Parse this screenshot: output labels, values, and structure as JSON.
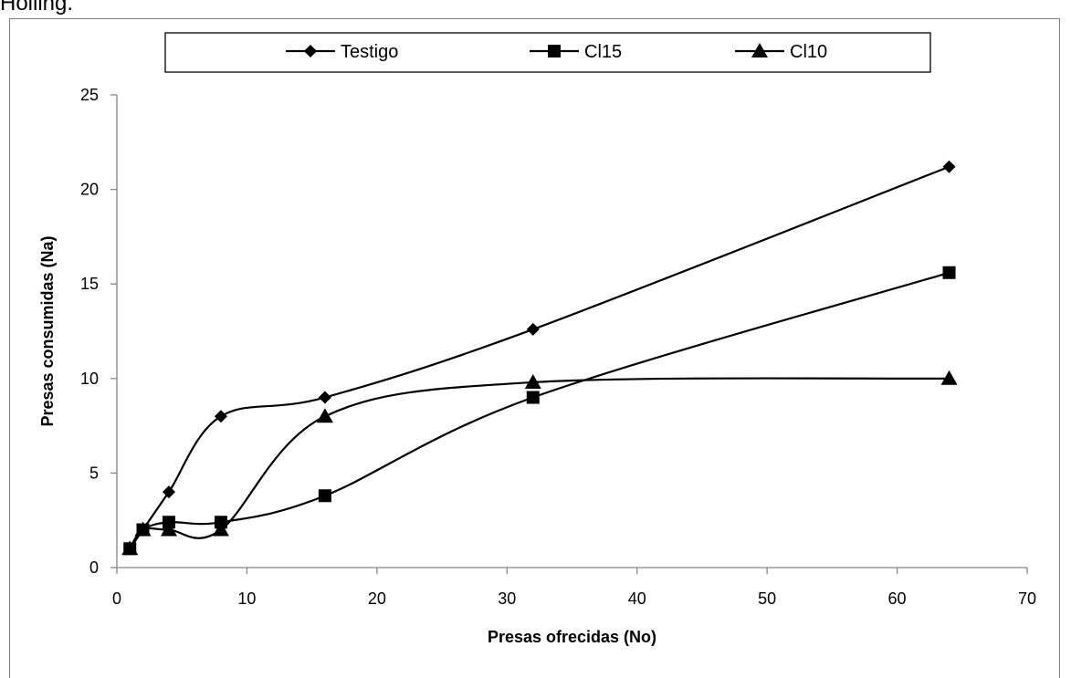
{
  "caption": "Holling.",
  "chart_data": {
    "type": "line",
    "xlabel": "Presas ofrecidas (No)",
    "ylabel": "Presas consumidas (Na)",
    "xlim": [
      0,
      70
    ],
    "ylim": [
      0,
      25
    ],
    "xticks": [
      "0",
      "10",
      "20",
      "30",
      "40",
      "50",
      "60",
      "70"
    ],
    "yticks": [
      "0",
      "5",
      "10",
      "15",
      "20",
      "25"
    ],
    "grid": false,
    "legend_position": "top",
    "smooth": true,
    "line_color": "#000000",
    "series": [
      {
        "name": "Testigo",
        "marker": "diamond",
        "x": [
          1,
          2,
          4,
          8,
          16,
          32,
          64
        ],
        "y": [
          1,
          2,
          4,
          8,
          9,
          12.6,
          21.2
        ]
      },
      {
        "name": "Cl15",
        "marker": "square",
        "x": [
          1,
          2,
          4,
          8,
          16,
          32,
          64
        ],
        "y": [
          1,
          2,
          2.4,
          2.4,
          3.8,
          9,
          15.6
        ]
      },
      {
        "name": "Cl10",
        "marker": "triangle",
        "x": [
          1,
          2,
          4,
          8,
          16,
          32,
          64
        ],
        "y": [
          1,
          2,
          2,
          2,
          8,
          9.8,
          10
        ]
      }
    ]
  }
}
